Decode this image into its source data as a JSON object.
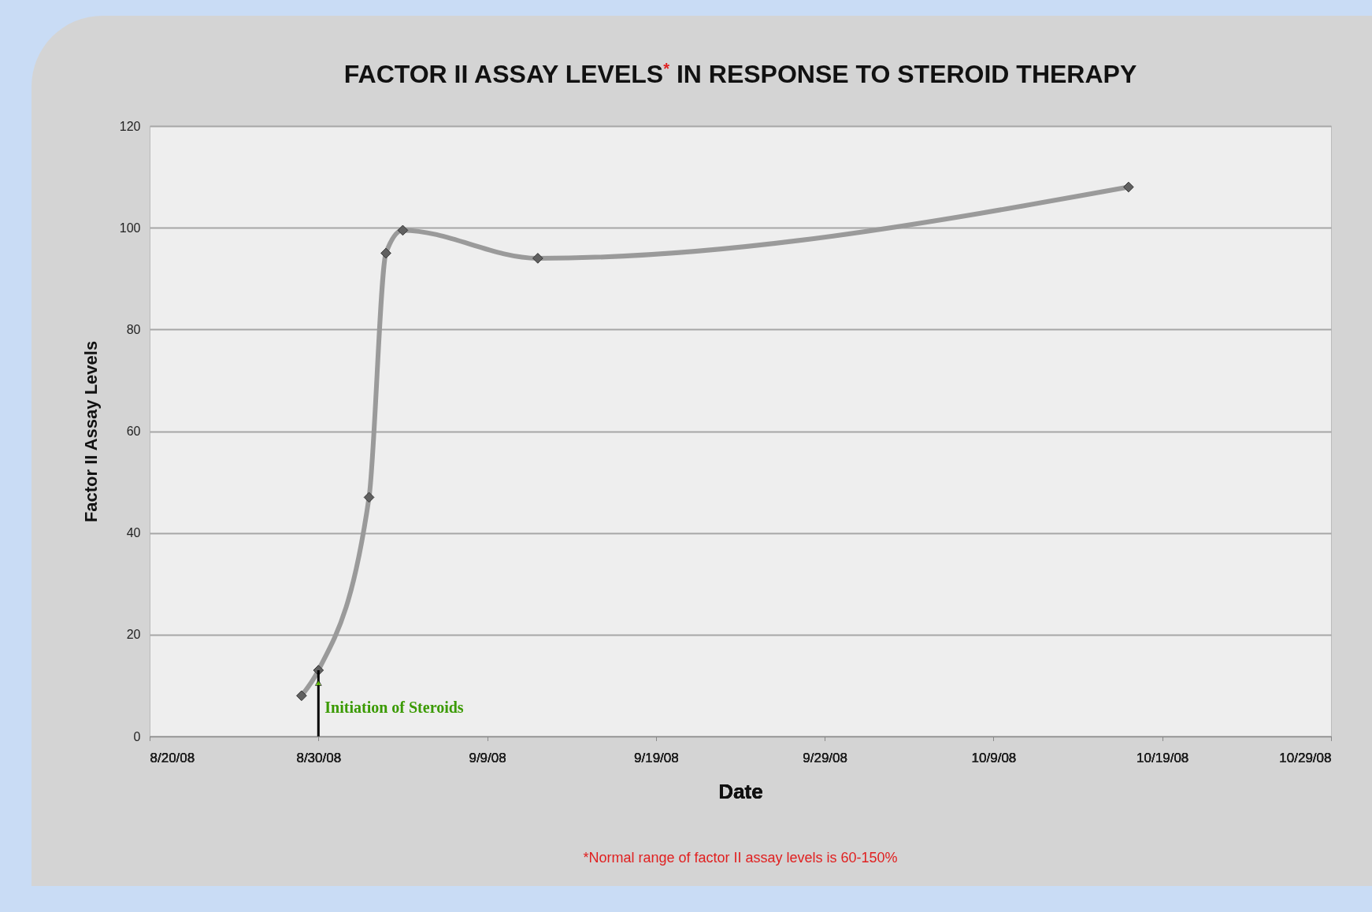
{
  "chart_data": {
    "type": "line",
    "title": "FACTOR II ASSAY LEVELS$^{*}$ IN RESPONSE TO STEROID THERAPY",
    "xlabel": "Date",
    "ylabel": "Factor II Assay Levels",
    "x": [
      "--08-29",
      "--08-30",
      "--09-02",
      "--09-03",
      "--09-04",
      "--09-12",
      "--10-17"
    ],
    "series": [
      {
        "color": "#9a9a9a",
        "values": [
          8,
          13,
          47,
          95,
          99.5,
          94,
          108
        ]
      }
    ],
    "xlim": [
      "--08-20",
      "--10-29"
    ],
    "xticks": [
      {
        "value": "--08-20",
        "label": "8/20/08"
      },
      {
        "value": "--08-30",
        "label": "8/30/08"
      },
      {
        "value": "--09-09",
        "label": "9/9/08"
      },
      {
        "value": "--09-19",
        "label": "9/19/08"
      },
      {
        "value": "--09-29",
        "label": "9/29/08"
      },
      {
        "value": "--10-09",
        "label": "10/9/08"
      },
      {
        "value": "--10-19",
        "label": "10/19/08"
      },
      {
        "value": "--10-29",
        "label": "10/29/08"
      }
    ],
    "ylim": [
      0,
      120
    ],
    "yticks": [
      0,
      20,
      40,
      60,
      80,
      100,
      120
    ],
    "annotations": [
      {
        "text": "Initiation of Steroids",
        "x": "--08-30",
        "y": 13
      },
      "*Normal range of factor II assay levels is 60-150%"
    ],
    "grid": "y",
    "marker": "diamond",
    "line_style": "solid"
  }
}
